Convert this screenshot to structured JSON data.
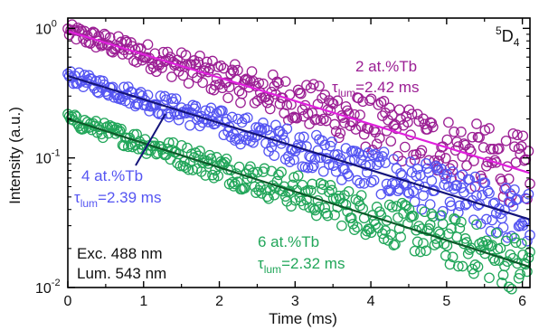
{
  "chart_data": {
    "type": "scatter",
    "title": "",
    "xlabel": "Time (ms)",
    "ylabel": "Intensity (a.u.)",
    "x_ticks": [
      0,
      1,
      2,
      3,
      4,
      5,
      6
    ],
    "x_tick_labels": [
      "0",
      "1",
      "2",
      "3",
      "4",
      "5",
      "6"
    ],
    "xlim": [
      0,
      6.1
    ],
    "ylim": [
      0.01,
      1.2
    ],
    "y_scale": "log",
    "y_ticks": [
      0.01,
      0.1,
      1
    ],
    "y_tick_mantissa": [
      "10",
      "10",
      "10"
    ],
    "y_tick_exponents": [
      "-2",
      "-1",
      "0"
    ],
    "grid": false,
    "legend": "none",
    "level_label": {
      "main": "5",
      "sub_main": "D",
      "sub": "4"
    },
    "series": [
      {
        "name": "2 at.%Tb",
        "tau_prefix": "τ",
        "tau_sub": "lum",
        "tau_value": "=2.42 ms",
        "color_points": "#9b1f94",
        "color_fit": "#e020dd",
        "label_color": "#9b1f94",
        "fit": {
          "x0": 0,
          "x1": 6.1,
          "y0": 0.95,
          "tau": 2.42
        },
        "noise": 0.1
      },
      {
        "name": "4 at.%Tb",
        "tau_prefix": "τ",
        "tau_sub": "lum",
        "tau_value": "=2.39 ms",
        "color_points": "#5555f2",
        "color_fit": "#14147a",
        "label_color": "#5555f2",
        "fit": {
          "x0": 0,
          "x1": 6.1,
          "y0": 0.43,
          "tau": 2.39
        },
        "noise": 0.08
      },
      {
        "name": "6 at.%Tb",
        "tau_prefix": "τ",
        "tau_sub": "lum",
        "tau_value": "=2.32 ms",
        "color_points": "#22a65a",
        "color_fit": "#0d5a2a",
        "label_color": "#22a65a",
        "fit": {
          "x0": 0,
          "x1": 6.1,
          "y0": 0.2,
          "tau": 2.32
        },
        "noise": 0.08
      }
    ],
    "annotations": {
      "exc": "Exc. 488 nm",
      "lum": "Lum. 543 nm"
    }
  }
}
